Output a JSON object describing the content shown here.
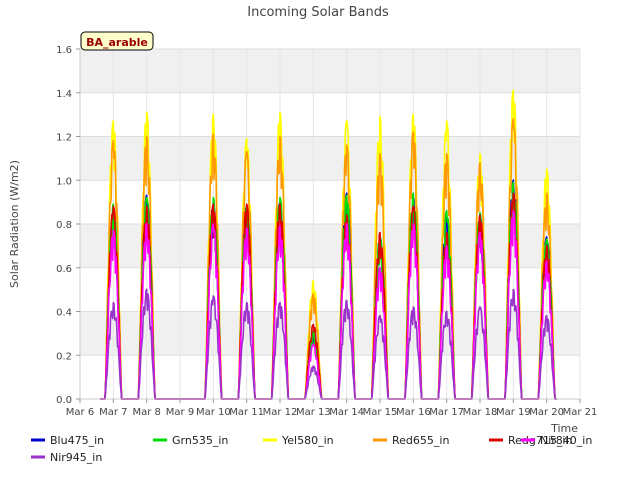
{
  "chart_data": {
    "type": "line",
    "title": "Incoming Solar Bands",
    "xlabel": "Time",
    "ylabel": "Solar Radiation (W/m2)",
    "annotation": "BA_arable",
    "xlim": [
      6,
      21
    ],
    "ylim": [
      0,
      1.6
    ],
    "x_ticks": [
      6,
      7,
      8,
      9,
      10,
      11,
      12,
      13,
      14,
      15,
      16,
      17,
      18,
      19,
      20,
      21
    ],
    "x_tick_labels": [
      "Mar 6",
      "Mar 7",
      "Mar 8",
      "Mar 9",
      "Mar 10",
      "Mar 11",
      "Mar 12",
      "Mar 13",
      "Mar 14",
      "Mar 15",
      "Mar 16",
      "Mar 17",
      "Mar 18",
      "Mar 19",
      "Mar 20",
      "Mar 21"
    ],
    "y_ticks": [
      0.0,
      0.2,
      0.4,
      0.6,
      0.8,
      1.0,
      1.2,
      1.4,
      1.6
    ],
    "y_tick_labels": [
      "0.0",
      "0.2",
      "0.4",
      "0.6",
      "0.8",
      "1.0",
      "1.2",
      "1.4",
      "1.6"
    ],
    "grid": true,
    "background_bands": true,
    "legend_position": "bottom",
    "data_note": "Daily peak (maximum) values per series, read from the chart; each day follows a diurnal cycle from zero to the peak.",
    "days": [
      7,
      8,
      10,
      11,
      12,
      13,
      14,
      15,
      16,
      17,
      18,
      19,
      20
    ],
    "day_labels": [
      "Mar 7",
      "Mar 8",
      "Mar 10",
      "Mar 11",
      "Mar 12",
      "Mar 13",
      "Mar 14",
      "Mar 15",
      "Mar 16",
      "Mar 17",
      "Mar 18",
      "Mar 19",
      "Mar 20"
    ],
    "series": [
      {
        "name": "Blu475_in",
        "color": "#0000cc",
        "values": [
          0.87,
          0.93,
          0.9,
          0.88,
          0.9,
          0.3,
          0.94,
          0.74,
          0.92,
          0.84,
          0.84,
          1.0,
          0.74
        ]
      },
      {
        "name": "Grn535_in",
        "color": "#00dd00",
        "values": [
          0.89,
          0.92,
          0.92,
          0.88,
          0.92,
          0.31,
          0.93,
          0.74,
          0.94,
          0.86,
          0.85,
          0.99,
          0.73
        ]
      },
      {
        "name": "Yel580_in",
        "color": "#ffff00",
        "values": [
          1.27,
          1.31,
          1.3,
          1.19,
          1.31,
          0.54,
          1.27,
          1.29,
          1.3,
          1.27,
          1.12,
          1.41,
          1.05
        ]
      },
      {
        "name": "Red655_in",
        "color": "#ff9900",
        "values": [
          1.18,
          1.2,
          1.21,
          1.13,
          1.2,
          0.48,
          1.16,
          1.12,
          1.22,
          1.12,
          1.08,
          1.28,
          0.94
        ]
      },
      {
        "name": "Redg715_in",
        "color": "#dd0000",
        "values": [
          0.88,
          0.88,
          0.89,
          0.89,
          0.89,
          0.34,
          0.84,
          0.76,
          0.88,
          0.76,
          0.84,
          0.94,
          0.7
        ]
      },
      {
        "name": "Nir840_in",
        "color": "#ff00ff",
        "values": [
          0.77,
          0.8,
          0.8,
          0.78,
          0.79,
          0.25,
          0.8,
          0.6,
          0.8,
          0.7,
          0.76,
          0.86,
          0.63
        ]
      },
      {
        "name": "Nir945_in",
        "color": "#9933cc",
        "values": [
          0.44,
          0.5,
          0.47,
          0.44,
          0.44,
          0.15,
          0.45,
          0.38,
          0.42,
          0.4,
          0.42,
          0.5,
          0.38
        ]
      }
    ]
  }
}
